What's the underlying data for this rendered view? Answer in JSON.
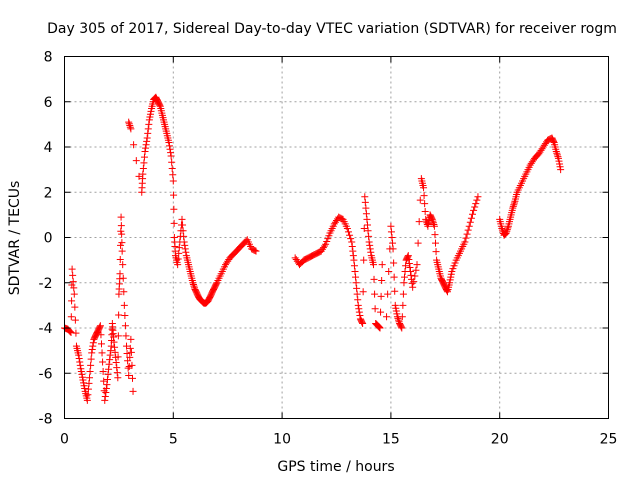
{
  "chart_data": {
    "type": "scatter",
    "title": "Day 305 of 2017, Sidereal Day-to-day VTEC variation (SDTVAR) for receiver rogm",
    "xlabel": "GPS time / hours",
    "ylabel": "SDTVAR / TECUs",
    "xlim": [
      0,
      25
    ],
    "ylim": [
      -8,
      8
    ],
    "xticks": [
      0,
      5,
      10,
      15,
      20,
      25
    ],
    "xtick_labels": [
      "0",
      "5",
      "10",
      "15",
      "20",
      "25"
    ],
    "yticks": [
      -8,
      -6,
      -4,
      -2,
      0,
      2,
      4,
      6,
      8
    ],
    "ytick_labels": [
      "-8",
      "-6",
      "-4",
      "-2",
      "0",
      "2",
      "4",
      "6",
      "8"
    ],
    "grid": true,
    "marker": "+",
    "color": "#ff0000",
    "series": [
      {
        "name": "SDTVAR",
        "segments": [
          [
            [
              0.0,
              -4.0
            ],
            [
              0.15,
              -4.05
            ],
            [
              0.3,
              -4.2
            ],
            [
              0.35,
              -1.4
            ],
            [
              0.45,
              -2.5
            ],
            [
              0.55,
              -4.8
            ],
            [
              0.65,
              -5.2
            ],
            [
              0.75,
              -5.8
            ],
            [
              0.85,
              -6.3
            ],
            [
              0.95,
              -6.8
            ],
            [
              1.05,
              -7.2
            ],
            [
              1.15,
              -6.2
            ],
            [
              1.25,
              -5.1
            ],
            [
              1.35,
              -4.5
            ],
            [
              1.45,
              -4.3
            ],
            [
              1.55,
              -4.1
            ],
            [
              1.65,
              -3.9
            ],
            [
              1.75,
              -5.5
            ],
            [
              1.85,
              -7.2
            ],
            [
              1.95,
              -6.5
            ],
            [
              2.05,
              -5.6
            ],
            [
              2.15,
              -4.8
            ],
            [
              2.2,
              -3.8
            ],
            [
              2.25,
              -4.4
            ],
            [
              2.35,
              -5.3
            ],
            [
              2.45,
              -6.2
            ],
            [
              2.5,
              -2.5
            ],
            [
              2.55,
              -1.6
            ],
            [
              2.6,
              0.9
            ],
            [
              2.65,
              -0.6
            ],
            [
              2.75,
              -3.0
            ],
            [
              2.85,
              -4.8
            ],
            [
              2.95,
              -6.1
            ],
            [
              3.05,
              -4.5
            ],
            [
              3.15,
              -6.8
            ]
          ],
          [
            [
              2.95,
              5.1
            ],
            [
              3.05,
              4.8
            ],
            [
              3.55,
              2.0
            ],
            [
              3.6,
              2.8
            ],
            [
              3.7,
              3.8
            ],
            [
              3.8,
              4.4
            ],
            [
              3.9,
              5.2
            ],
            [
              4.0,
              5.7
            ],
            [
              4.1,
              6.1
            ],
            [
              4.2,
              6.2
            ],
            [
              4.3,
              6.0
            ],
            [
              4.4,
              5.8
            ],
            [
              4.5,
              5.4
            ],
            [
              4.6,
              5.0
            ],
            [
              4.7,
              4.6
            ],
            [
              4.8,
              4.2
            ],
            [
              4.9,
              3.6
            ],
            [
              5.0,
              2.5
            ],
            [
              5.05,
              0.0
            ],
            [
              5.1,
              -0.8
            ],
            [
              5.2,
              -1.2
            ],
            [
              5.3,
              -0.2
            ],
            [
              5.4,
              0.8
            ],
            [
              5.5,
              -0.2
            ],
            [
              5.6,
              -0.8
            ],
            [
              5.7,
              -1.2
            ],
            [
              5.8,
              -1.6
            ],
            [
              5.9,
              -2.0
            ],
            [
              6.0,
              -2.3
            ],
            [
              6.1,
              -2.5
            ],
            [
              6.2,
              -2.7
            ],
            [
              6.3,
              -2.8
            ],
            [
              6.4,
              -2.9
            ],
            [
              6.5,
              -2.9
            ],
            [
              6.6,
              -2.8
            ],
            [
              6.7,
              -2.6
            ],
            [
              6.8,
              -2.4
            ],
            [
              6.9,
              -2.2
            ],
            [
              7.0,
              -2.0
            ],
            [
              7.2,
              -1.6
            ],
            [
              7.4,
              -1.2
            ],
            [
              7.6,
              -0.9
            ],
            [
              7.8,
              -0.7
            ],
            [
              8.0,
              -0.5
            ],
            [
              8.2,
              -0.3
            ],
            [
              8.4,
              -0.1
            ],
            [
              8.6,
              -0.5
            ],
            [
              8.8,
              -0.6
            ]
          ],
          [
            [
              10.6,
              -0.9
            ],
            [
              10.8,
              -1.2
            ],
            [
              11.0,
              -1.0
            ],
            [
              11.2,
              -0.9
            ],
            [
              11.4,
              -0.8
            ],
            [
              11.6,
              -0.7
            ],
            [
              11.8,
              -0.6
            ],
            [
              12.0,
              -0.3
            ],
            [
              12.2,
              0.2
            ],
            [
              12.4,
              0.6
            ],
            [
              12.6,
              0.9
            ],
            [
              12.8,
              0.8
            ],
            [
              13.0,
              0.4
            ],
            [
              13.2,
              -0.2
            ],
            [
              13.3,
              -1.0
            ],
            [
              13.4,
              -2.0
            ],
            [
              13.5,
              -3.0
            ],
            [
              13.6,
              -3.6
            ],
            [
              13.7,
              -3.8
            ],
            [
              13.8,
              1.8
            ],
            [
              13.9,
              0.8
            ],
            [
              14.0,
              -0.2
            ],
            [
              14.1,
              -0.8
            ],
            [
              14.2,
              -1.2
            ],
            [
              14.3,
              -3.8
            ],
            [
              14.4,
              -3.9
            ],
            [
              14.5,
              -4.0
            ],
            [
              14.6,
              -1.2
            ]
          ],
          [
            [
              14.8,
              -3.5
            ],
            [
              15.0,
              0.5
            ],
            [
              15.1,
              -0.5
            ],
            [
              15.2,
              -3.0
            ],
            [
              15.3,
              -3.5
            ],
            [
              15.4,
              -3.8
            ],
            [
              15.5,
              -4.0
            ],
            [
              15.6,
              -2.0
            ],
            [
              15.7,
              -1.0
            ],
            [
              15.8,
              -0.8
            ],
            [
              15.9,
              -1.5
            ],
            [
              16.0,
              -2.2
            ],
            [
              16.2,
              -1.2
            ],
            [
              16.4,
              2.6
            ],
            [
              16.5,
              2.2
            ],
            [
              16.6,
              0.8
            ],
            [
              16.7,
              0.5
            ],
            [
              16.8,
              1.0
            ],
            [
              16.9,
              0.8
            ],
            [
              17.0,
              0.5
            ],
            [
              17.1,
              -1.0
            ],
            [
              17.2,
              -1.4
            ],
            [
              17.3,
              -1.8
            ],
            [
              17.4,
              -2.0
            ],
            [
              17.5,
              -2.2
            ],
            [
              17.6,
              -2.4
            ],
            [
              17.7,
              -2.0
            ],
            [
              17.8,
              -1.5
            ],
            [
              18.0,
              -1.0
            ],
            [
              18.2,
              -0.6
            ],
            [
              18.4,
              -0.2
            ],
            [
              18.6,
              0.5
            ],
            [
              18.8,
              1.2
            ],
            [
              19.0,
              1.8
            ]
          ],
          [
            [
              20.0,
              0.8
            ],
            [
              20.1,
              0.4
            ],
            [
              20.2,
              0.1
            ],
            [
              20.3,
              0.2
            ],
            [
              20.4,
              0.5
            ],
            [
              20.5,
              0.9
            ],
            [
              20.6,
              1.3
            ],
            [
              20.7,
              1.6
            ],
            [
              20.8,
              2.0
            ],
            [
              21.0,
              2.4
            ],
            [
              21.2,
              2.8
            ],
            [
              21.4,
              3.2
            ],
            [
              21.6,
              3.5
            ],
            [
              21.8,
              3.7
            ],
            [
              22.0,
              4.0
            ],
            [
              22.2,
              4.3
            ],
            [
              22.4,
              4.4
            ],
            [
              22.5,
              4.2
            ],
            [
              22.6,
              3.8
            ],
            [
              22.7,
              3.5
            ],
            [
              22.8,
              3.0
            ]
          ]
        ]
      }
    ]
  }
}
